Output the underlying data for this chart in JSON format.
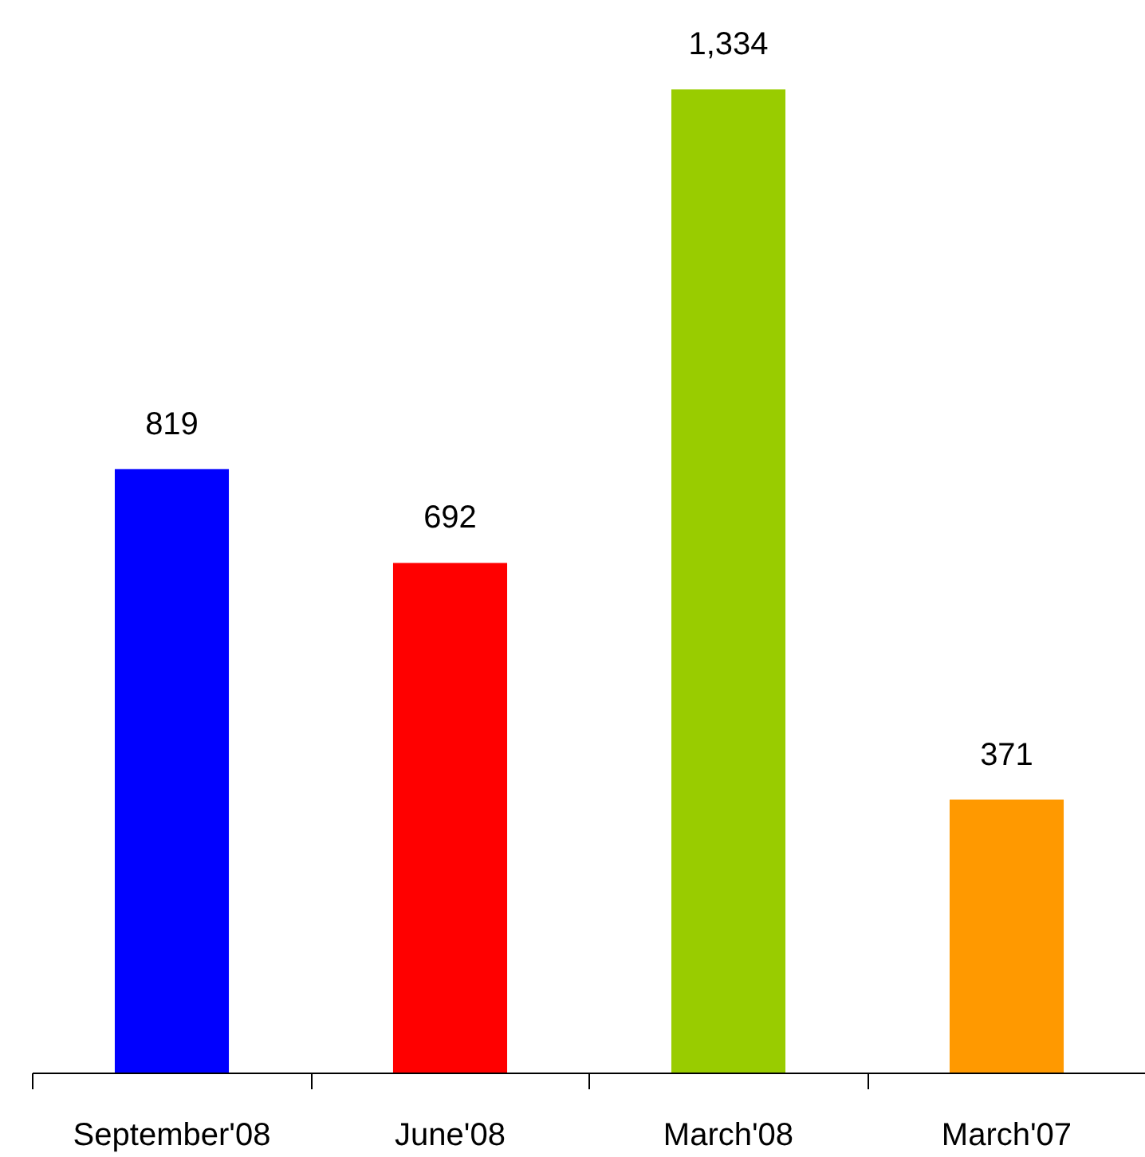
{
  "chart_data": {
    "type": "bar",
    "categories": [
      "September'08",
      "June'08",
      "March'08",
      "March'07"
    ],
    "values": [
      819,
      692,
      1334,
      371
    ],
    "colors": [
      "#0000ff",
      "#ff0000",
      "#99cc00",
      "#ff9900"
    ],
    "value_labels": [
      "819",
      "692",
      "1,334",
      "371"
    ]
  }
}
